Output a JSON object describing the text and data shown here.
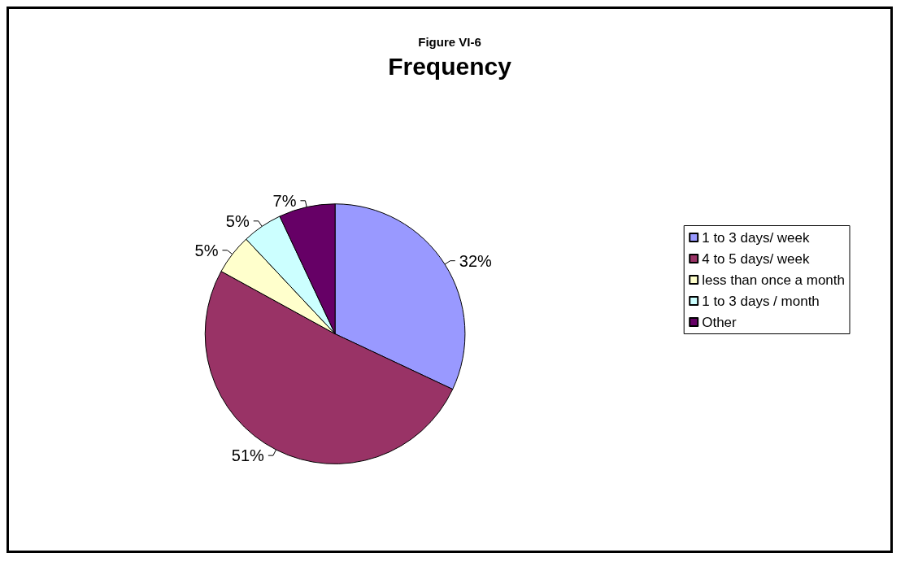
{
  "chart_data": {
    "type": "pie",
    "subtitle": "Figure VI-6",
    "title": "Frequency",
    "categories": [
      "1 to 3 days/ week",
      "4 to 5 days/ week",
      "less than once a month",
      "1 to 3 days / month",
      "Other"
    ],
    "values": [
      32,
      51,
      5,
      5,
      7
    ],
    "colors": [
      "#9999ff",
      "#993366",
      "#ffffcc",
      "#ccffff",
      "#660066"
    ],
    "value_labels": [
      "32%",
      "51%",
      "5%",
      "5%",
      "7%"
    ],
    "legend": "right"
  }
}
